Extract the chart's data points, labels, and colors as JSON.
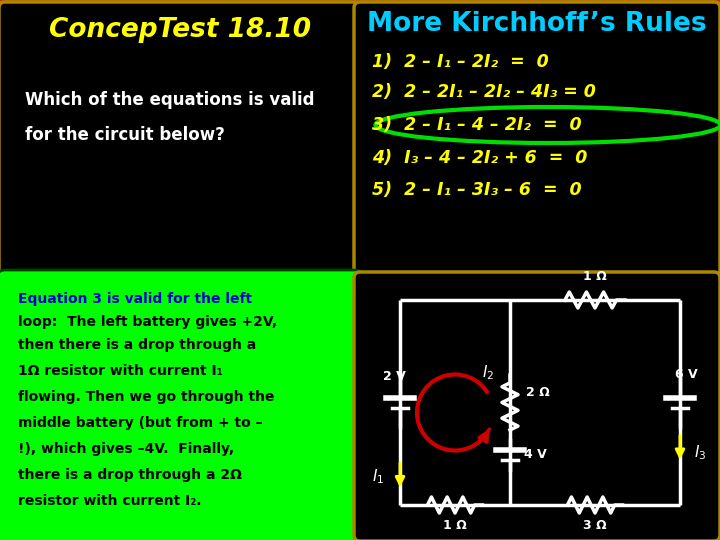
{
  "bg_color": "#cc3300",
  "title_left": "ConcepTest 18.10",
  "title_right": "More Kirchhoff’s Rules",
  "title_left_color": "#ffff00",
  "title_right_color": "#00ccff",
  "question_line1": "Which of the equations is valid",
  "question_line2": "for the circuit below?",
  "question_color": "#ffffff",
  "eq1": "1)  2 – I₁ – 2I₂  =  0",
  "eq2": "2)  2 – 2I₁ – 2I₂ – 4I₃ = 0",
  "eq3": "3)  2 – I₁ – 4 – 2I₂  =  0",
  "eq4": "4)  I₃ – 4 – 2I₂ + 6  =  0",
  "eq5": "5)  2 – I₁ – 3I₃ – 6  =  0",
  "eq_color": "#ffff00",
  "highlight_color": "#00dd00",
  "answer_title": "Equation 3 is valid for the left",
  "answer_title2": "loop:  The left battery gives +2V,",
  "answer_line3": "then there is a drop through a",
  "answer_line4": "1Ω resistor with current I₁",
  "answer_line5": "flowing. Then we go through the",
  "answer_line6": "middle battery (but from + to –",
  "answer_line7": "!), which gives –4V.  Finally,",
  "answer_line8": "there is a drop through a 2Ω",
  "answer_line9": "resistor with current I₂.",
  "answer_color": "#000000",
  "answer_bg": "#00ff00",
  "answer_title_color": "#0000cc",
  "panel_bg": "#000000",
  "panel_edge": "#aa8800",
  "wire_color": "#ffffff",
  "resistor_color": "#ffffff",
  "battery_color": "#ffffff",
  "loop_arrow_color": "#cc0000",
  "current_arrow_color": "#ffff00",
  "label_color": "#ffffff"
}
